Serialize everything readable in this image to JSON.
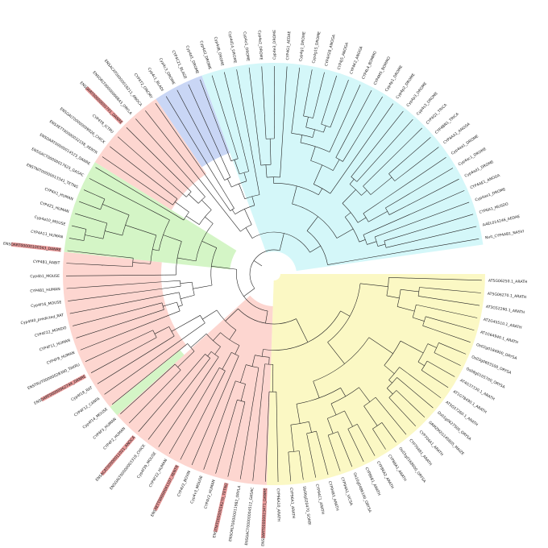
{
  "leaves": [
    {
      "label": "AT5G06250.1_ARATH"
    },
    {
      "label": "AT5G06270.1_ARATH"
    },
    {
      "label": "AT3G52290.1_ARATH"
    },
    {
      "label": "AT2G45510.1_ARATH"
    },
    {
      "label": "AT1G64940.1_ARATH"
    },
    {
      "label": "Os02g0184900_ORYSA"
    },
    {
      "label": "Os03g0603100_ORYSA"
    },
    {
      "label": "Os08g0105700_ORYSA"
    },
    {
      "label": "AT4G37330.1_ARATH"
    },
    {
      "label": "AT1G78490.1_ARATH"
    },
    {
      "label": "AT5G57260.1_ARATH"
    },
    {
      "label": "Os01g0627500_ORYSA"
    },
    {
      "label": "GRMZM2G145805_MAIZE"
    },
    {
      "label": "CYP704A1_ARATH"
    },
    {
      "label": "CYP704B1_ARATH"
    },
    {
      "label": "Os03g0168600_ORYSA"
    },
    {
      "label": "CYP86A1_ARATH"
    },
    {
      "label": "CYP86A2_ARATH"
    },
    {
      "label": "CYP86B1_ARATH"
    },
    {
      "label": "Os10g0486100_ORYSA"
    },
    {
      "label": "CYP94A1_VICSA"
    },
    {
      "label": "CYP94B1_ARATH"
    },
    {
      "label": "CYP94C1_ARATH"
    },
    {
      "label": "Sb06g020470_SORBI"
    },
    {
      "label": "CYP96A1_ARATH"
    },
    {
      "label": "CYP96A10_ARATH"
    },
    {
      "label": "ENSDART00000023471_DANRE",
      "highlight": true
    },
    {
      "label": "ENSGACT00000004512_GASAC"
    },
    {
      "label": "ENSORLT00000011982_ORYLA"
    },
    {
      "label": "ENSTNIT00000016270_TETNG",
      "highlight": true
    },
    {
      "label": "CYP4V2_HUMAN"
    },
    {
      "label": "Cyp4v3_MOUSE"
    },
    {
      "label": "CYP4V2_BOVIN"
    },
    {
      "label": "ENSXETT00000041107_XENTR",
      "highlight": true
    },
    {
      "label": "CYP4F22_HUMAN"
    },
    {
      "label": "Cyp4f39_MOUSE"
    },
    {
      "label": "ENSGALT00000003318_CHICK"
    },
    {
      "label": "ENSACAT00000011021_ANOCA",
      "highlight": true
    },
    {
      "label": "CYP4F2_HUMAN"
    },
    {
      "label": "CYP4F3_HUMAN"
    },
    {
      "label": "Cyp4f14_MOUSE"
    },
    {
      "label": "CYP4F12_CANFA"
    },
    {
      "label": "Cyp4f18_RAT"
    },
    {
      "label": "ENSDART00000062744_DANRE",
      "highlight": true
    },
    {
      "label": "ENSTRUT00000028390_TAKRU"
    },
    {
      "label": "CYP4F8_HUMAN"
    },
    {
      "label": "CYP4F11_HUMAN"
    },
    {
      "label": "CYP4F22_MONDO"
    },
    {
      "label": "Cyp4f40_predicted_RAT"
    },
    {
      "label": "Cyp4f16_MOUSE"
    },
    {
      "label": "CYP4B1_HUMAN"
    },
    {
      "label": "Cyp4b1_MOUSE"
    },
    {
      "label": "CYP4B1_RABIT"
    },
    {
      "label": "ENSDART00000100343_DANRE",
      "highlight": true
    },
    {
      "label": "CYP4A11_HUMAN"
    },
    {
      "label": "Cyp4a10_MOUSE"
    },
    {
      "label": "CYP4Z1_HUMAN"
    },
    {
      "label": "CYP4X1_HUMAN"
    },
    {
      "label": "ENSTNIT00000013341_TETNG"
    },
    {
      "label": "ENSGACT00000017625_GASAC"
    },
    {
      "label": "ENSDART00000014523_DANRE"
    },
    {
      "label": "ENSXETT00000032158_XENTR"
    },
    {
      "label": "ENSGALT00000009926_CHICK"
    },
    {
      "label": "CYP4T8_ICTPU"
    },
    {
      "label": "ENSDART00000055701_DANRE",
      "highlight": true
    },
    {
      "label": "ENSORLT00000006843_ORYLA"
    },
    {
      "label": "ENSACAT00000018211_ANOCA"
    },
    {
      "label": "CYP4T2_ONCMY"
    },
    {
      "label": "Cyp4c1_BLADI"
    },
    {
      "label": "Cyp4c3_DROME"
    },
    {
      "label": "CYP4C21_BLAGE"
    },
    {
      "label": "Cyp4d1_DROME"
    },
    {
      "label": "Cyp4d2_DROME"
    },
    {
      "label": "Cyp4d8_DROME"
    },
    {
      "label": "Cyp4d14_DROME"
    },
    {
      "label": "Cyp4e1_DROME"
    },
    {
      "label": "Cyp4e2_DROME"
    },
    {
      "label": "Cyp4e3_DROME"
    },
    {
      "label": "CYP4G1_AEDAE"
    },
    {
      "label": "Cyp4g1_DROME"
    },
    {
      "label": "Cyp4g15_DROME"
    },
    {
      "label": "CYP4H28_ANOGA"
    },
    {
      "label": "CYP4J5_ANOGA"
    },
    {
      "label": "CYP4K2_ANOGA"
    },
    {
      "label": "CYP4L4_BOMMO"
    },
    {
      "label": "CYP4M5_BOMMO"
    },
    {
      "label": "Cyp4p1_DROME"
    },
    {
      "label": "Cyp4p2_DROME"
    },
    {
      "label": "Cyp4p3_DROME"
    },
    {
      "label": "Cyp4s3_DROME"
    },
    {
      "label": "CYP4Q1_TRICA"
    },
    {
      "label": "CYP4BN1_TRICA"
    },
    {
      "label": "CYP4AA1_ANOGA"
    },
    {
      "label": "Cyp4aa1_DROME"
    },
    {
      "label": "Cyp4ac1_DROME"
    },
    {
      "label": "Cyp4ad1_DROME"
    },
    {
      "label": "CYP4AE1_ANOGA"
    },
    {
      "label": "Cyp4ae1_DROME"
    },
    {
      "label": "CYP6A1_MUSDO"
    },
    {
      "label": "AAEL014246_AEDAE"
    },
    {
      "label": "Nvit_CYP4AB1_NASVI"
    }
  ]
}
